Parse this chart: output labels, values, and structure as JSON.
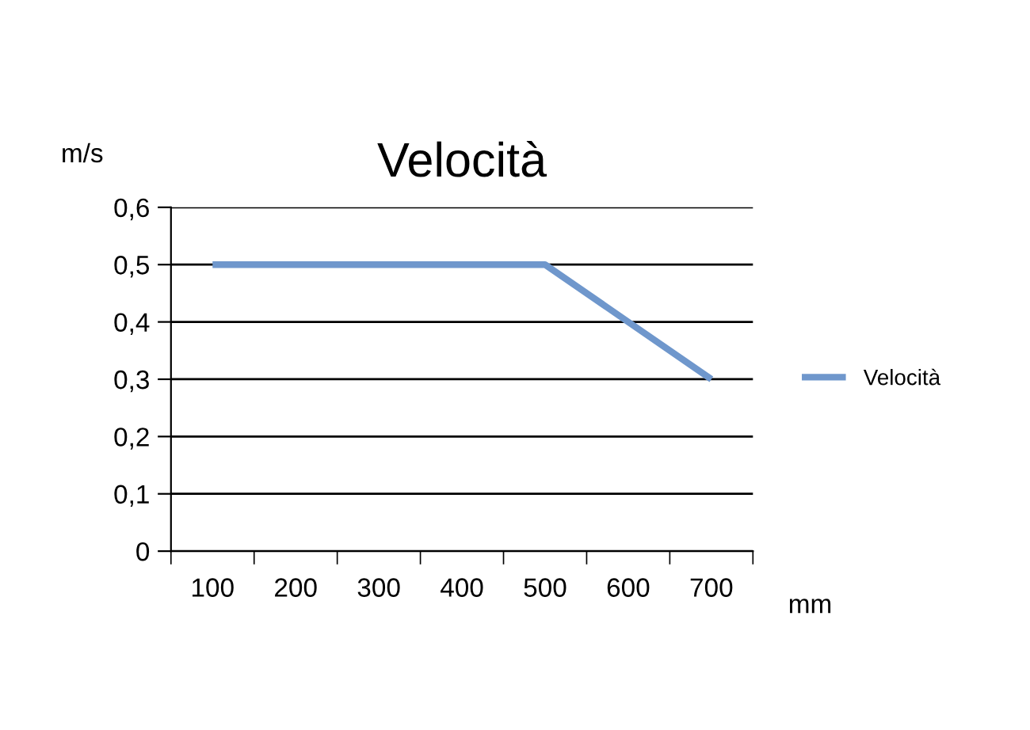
{
  "chart_data": {
    "type": "line",
    "title": "Velocità",
    "xlabel": "mm",
    "ylabel": "m/s",
    "categories": [
      "100",
      "200",
      "300",
      "400",
      "500",
      "600",
      "700"
    ],
    "series": [
      {
        "name": "Velocità",
        "color": "#6f97cc",
        "values": [
          0.5,
          0.5,
          0.5,
          0.5,
          0.5,
          0.4,
          0.3
        ]
      }
    ],
    "ylim": [
      0,
      0.6
    ],
    "yticks": [
      0,
      {
        "value": 0.1,
        "label": "0,1"
      },
      {
        "value": 0.2,
        "label": "0,2"
      },
      {
        "value": 0.3,
        "label": "0,3"
      },
      {
        "value": 0.4,
        "label": "0,4"
      },
      {
        "value": 0.5,
        "label": "0,5"
      },
      {
        "value": 0.6,
        "label": "0,6"
      }
    ],
    "grid": "y",
    "legend": "right",
    "marker": "none",
    "line_style": "solid"
  }
}
